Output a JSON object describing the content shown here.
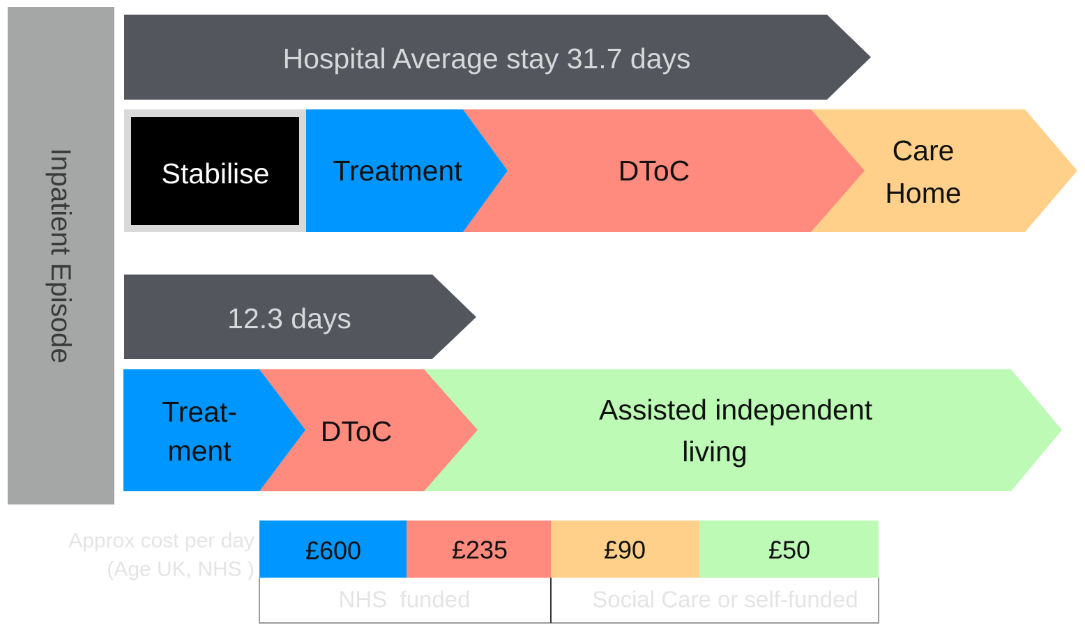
{
  "side_label": "Inpatient Episode",
  "pathway_1": {
    "duration": "Hospital Average stay 31.7 days",
    "stages": {
      "stabilise": "Stabilise",
      "treatment": "Treatment",
      "dtoc": "DToC",
      "care_home_line1": "Care",
      "care_home_line2": "Home"
    }
  },
  "pathway_2": {
    "duration": "12.3 days",
    "stages": {
      "treatment_line1": "Treat-",
      "treatment_line2": "ment",
      "dtoc": "DToC",
      "assisted_line1": "Assisted independent",
      "assisted_line2": "living"
    }
  },
  "cost": {
    "label_line1": "Approx cost per day",
    "label_line2": "(Age UK, NHS )",
    "values": [
      "£600",
      "£235",
      "£90",
      "£50"
    ],
    "funding_nhs": "NHS  funded",
    "funding_social": "Social Care or self-funded"
  },
  "colors": {
    "duration_bar": "#53565c",
    "side_bar": "#a5a7a6",
    "stabilise": "#000000",
    "treatment": "#0096ff",
    "dtoc": "#ff8a7e",
    "care_home": "#ffd08a",
    "assisted_living": "#bcfab6"
  }
}
